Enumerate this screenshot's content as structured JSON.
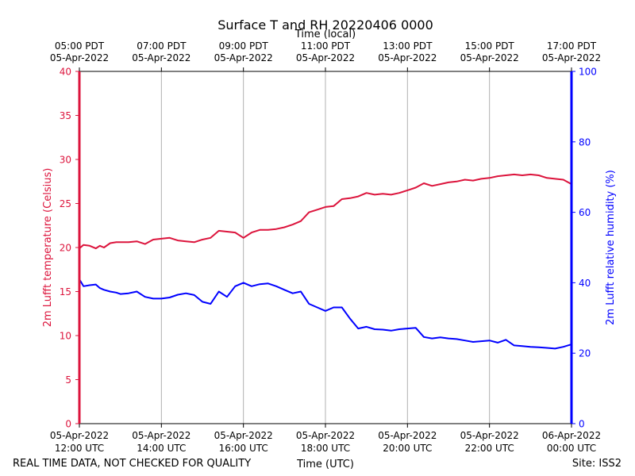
{
  "chart_data": {
    "type": "line",
    "title": "Surface T and RH 20220406 0000",
    "top_axis_label": "Time (local)",
    "xlabel": "Time (UTC)",
    "ylabel_left": "2m Lufft temperature (Celsius)",
    "ylabel_right": "2m Lufft relative humidity (%)",
    "footer_left": "REAL TIME DATA, NOT CHECKED FOR QUALITY",
    "footer_right": "Site: ISS2",
    "xlim_hours_utc": [
      12,
      24
    ],
    "ylim_left": [
      0,
      40
    ],
    "ylim_right": [
      0,
      100
    ],
    "left_ticks": [
      0,
      5,
      10,
      15,
      20,
      25,
      30,
      35,
      40
    ],
    "right_ticks": [
      0,
      20,
      40,
      60,
      80,
      100
    ],
    "x_ticks_utc": [
      {
        "hour": 12,
        "l1": "05-Apr-2022",
        "l2": "12:00 UTC"
      },
      {
        "hour": 14,
        "l1": "05-Apr-2022",
        "l2": "14:00 UTC"
      },
      {
        "hour": 16,
        "l1": "05-Apr-2022",
        "l2": "16:00 UTC"
      },
      {
        "hour": 18,
        "l1": "05-Apr-2022",
        "l2": "18:00 UTC"
      },
      {
        "hour": 20,
        "l1": "05-Apr-2022",
        "l2": "20:00 UTC"
      },
      {
        "hour": 22,
        "l1": "05-Apr-2022",
        "l2": "22:00 UTC"
      },
      {
        "hour": 24,
        "l1": "06-Apr-2022",
        "l2": "00:00 UTC"
      }
    ],
    "x_ticks_local": [
      {
        "hour": 12,
        "l1": "05:00 PDT",
        "l2": "05-Apr-2022"
      },
      {
        "hour": 14,
        "l1": "07:00 PDT",
        "l2": "05-Apr-2022"
      },
      {
        "hour": 16,
        "l1": "09:00 PDT",
        "l2": "05-Apr-2022"
      },
      {
        "hour": 18,
        "l1": "11:00 PDT",
        "l2": "05-Apr-2022"
      },
      {
        "hour": 20,
        "l1": "13:00 PDT",
        "l2": "05-Apr-2022"
      },
      {
        "hour": 22,
        "l1": "15:00 PDT",
        "l2": "05-Apr-2022"
      },
      {
        "hour": 24,
        "l1": "17:00 PDT",
        "l2": "05-Apr-2022"
      }
    ],
    "grid": "vertical",
    "colors": {
      "temperature": "#dc143c",
      "humidity": "#0000ff",
      "grid": "#b0b0b0",
      "text": "#000000"
    },
    "series": [
      {
        "name": "2m Lufft temperature",
        "axis": "left",
        "x": [
          12.0,
          12.1,
          12.25,
          12.4,
          12.5,
          12.6,
          12.75,
          12.9,
          13.0,
          13.2,
          13.4,
          13.6,
          13.8,
          14.0,
          14.2,
          14.4,
          14.6,
          14.8,
          15.0,
          15.2,
          15.4,
          15.6,
          15.8,
          16.0,
          16.2,
          16.4,
          16.6,
          16.8,
          17.0,
          17.2,
          17.4,
          17.6,
          17.8,
          18.0,
          18.2,
          18.4,
          18.6,
          18.8,
          19.0,
          19.2,
          19.4,
          19.6,
          19.8,
          20.0,
          20.2,
          20.4,
          20.6,
          20.8,
          21.0,
          21.2,
          21.4,
          21.6,
          21.8,
          22.0,
          22.2,
          22.4,
          22.6,
          22.8,
          23.0,
          23.2,
          23.4,
          23.6,
          23.8,
          24.0
        ],
        "y": [
          19.9,
          20.3,
          20.2,
          19.9,
          20.2,
          20.0,
          20.5,
          20.6,
          20.6,
          20.6,
          20.7,
          20.4,
          20.9,
          21.0,
          21.1,
          20.8,
          20.7,
          20.6,
          20.9,
          21.1,
          21.9,
          21.8,
          21.7,
          21.1,
          21.7,
          22.0,
          22.0,
          22.1,
          22.3,
          22.6,
          23.0,
          24.0,
          24.3,
          24.6,
          24.7,
          25.5,
          25.6,
          25.8,
          26.2,
          26.0,
          26.1,
          26.0,
          26.2,
          26.5,
          26.8,
          27.3,
          27.0,
          27.2,
          27.4,
          27.5,
          27.7,
          27.6,
          27.8,
          27.9,
          28.1,
          28.2,
          28.3,
          28.2,
          28.3,
          28.2,
          27.9,
          27.8,
          27.7,
          27.2
        ]
      },
      {
        "name": "2m Lufft relative humidity",
        "axis": "right",
        "x": [
          12.0,
          12.1,
          12.25,
          12.4,
          12.5,
          12.6,
          12.75,
          12.9,
          13.0,
          13.2,
          13.4,
          13.6,
          13.8,
          14.0,
          14.2,
          14.4,
          14.6,
          14.8,
          15.0,
          15.2,
          15.4,
          15.6,
          15.8,
          16.0,
          16.2,
          16.4,
          16.6,
          16.8,
          17.0,
          17.2,
          17.4,
          17.6,
          17.8,
          18.0,
          18.2,
          18.4,
          18.6,
          18.8,
          19.0,
          19.2,
          19.4,
          19.6,
          19.8,
          20.0,
          20.2,
          20.4,
          20.6,
          20.8,
          21.0,
          21.2,
          21.4,
          21.6,
          21.8,
          22.0,
          22.2,
          22.4,
          22.6,
          22.8,
          23.0,
          23.2,
          23.4,
          23.6,
          23.8,
          24.0
        ],
        "y": [
          41.0,
          39.0,
          39.3,
          39.5,
          38.5,
          38.0,
          37.5,
          37.2,
          36.8,
          37.0,
          37.5,
          36.0,
          35.5,
          35.5,
          35.8,
          36.6,
          37.0,
          36.5,
          34.6,
          34.0,
          37.5,
          36.0,
          39.0,
          40.0,
          39.0,
          39.6,
          39.8,
          39.0,
          38.0,
          37.0,
          37.5,
          34.0,
          33.0,
          32.0,
          33.0,
          33.0,
          29.8,
          27.0,
          27.5,
          26.8,
          26.7,
          26.4,
          26.8,
          27.0,
          27.2,
          24.6,
          24.2,
          24.5,
          24.2,
          24.0,
          23.6,
          23.2,
          23.4,
          23.6,
          23.0,
          23.8,
          22.2,
          22.0,
          21.8,
          21.7,
          21.5,
          21.3,
          21.8,
          22.5
        ]
      }
    ]
  }
}
